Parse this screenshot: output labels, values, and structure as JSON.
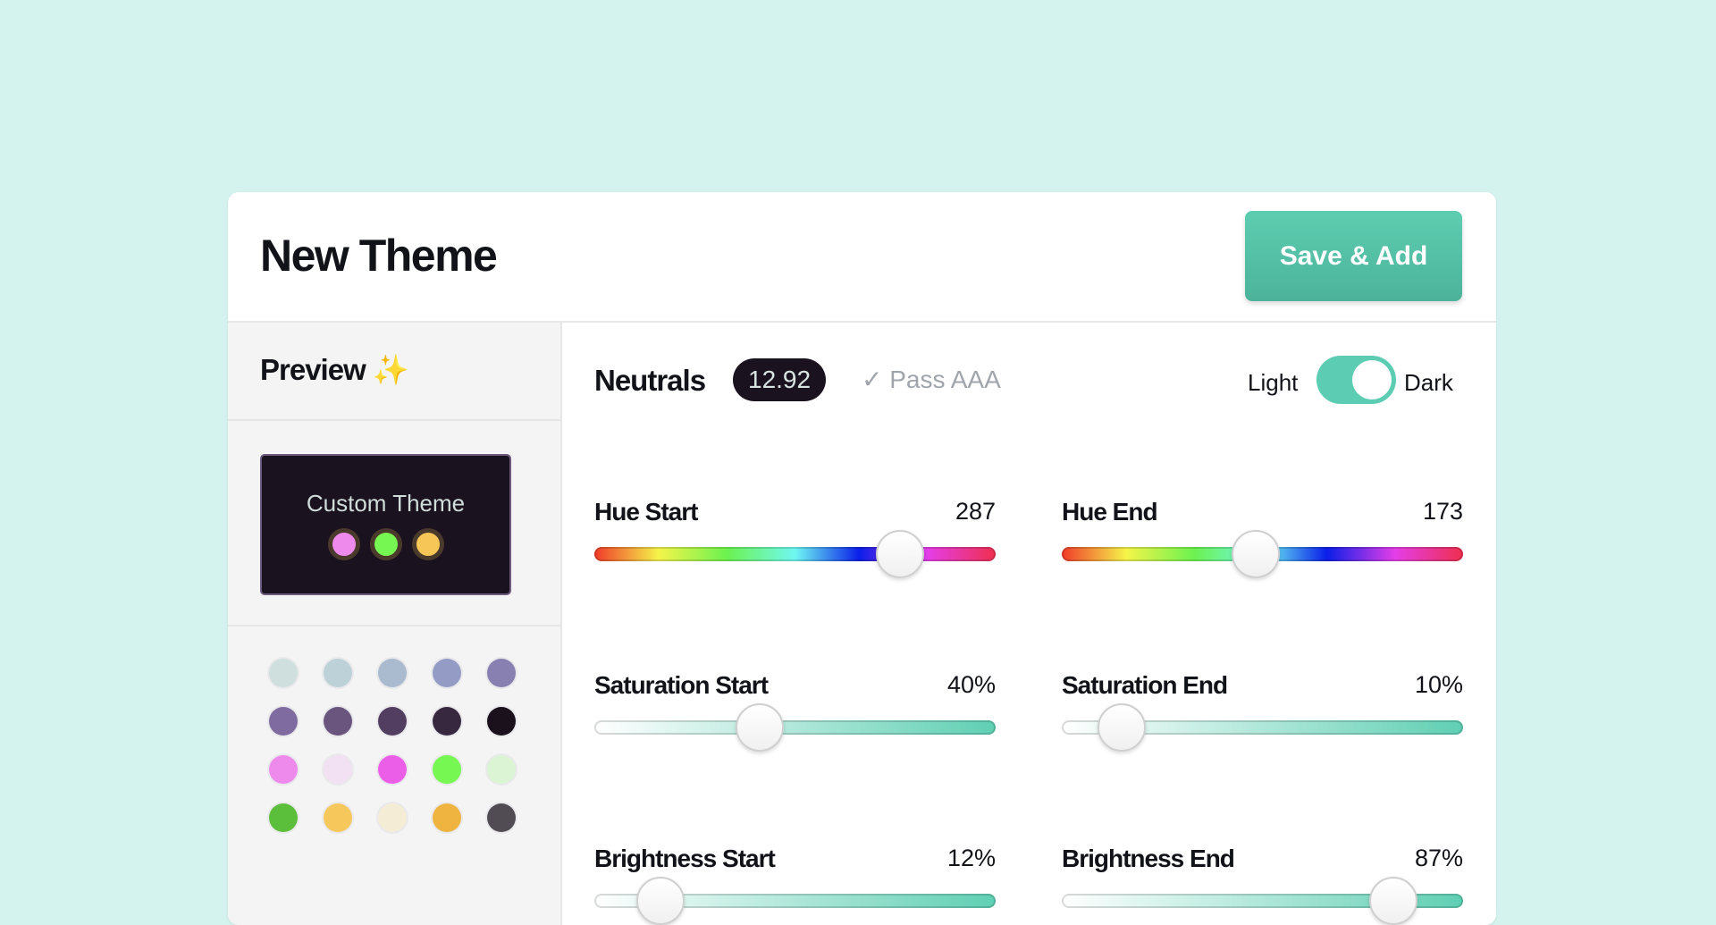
{
  "header": {
    "title": "New Theme",
    "save_label": "Save & Add"
  },
  "sidebar": {
    "preview_title": "Preview",
    "preview_icon": "sparkles-icon",
    "theme_card": {
      "name": "Custom Theme",
      "background": "#1b1220",
      "dots": [
        "#ef8aed",
        "#76f751",
        "#f6c656"
      ]
    },
    "swatches": [
      "#cfdfdd",
      "#bdd1d8",
      "#aabacf",
      "#949bc4",
      "#8980b2",
      "#7f6ba0",
      "#6a557f",
      "#523e60",
      "#372840",
      "#1a111d",
      "#ef8aed",
      "#f2e1f2",
      "#eb5ee8",
      "#76f751",
      "#daf4d4",
      "#5bbf3c",
      "#f6c75a",
      "#f5ecd6",
      "#efb33f",
      "#514b53"
    ]
  },
  "main": {
    "section_title": "Neutrals",
    "contrast_ratio": "12.92",
    "contrast_status": "✓ Pass AAA",
    "mode_toggle": {
      "left_label": "Light",
      "right_label": "Dark",
      "selected": "Dark"
    },
    "controls": [
      {
        "label": "Hue Start",
        "display": "287",
        "value": 287,
        "max": 360,
        "track": "hue"
      },
      {
        "label": "Hue End",
        "display": "173",
        "value": 173,
        "max": 360,
        "track": "hue"
      },
      {
        "label": "Saturation Start",
        "display": "40%",
        "value": 40,
        "max": 100,
        "track": "sat"
      },
      {
        "label": "Saturation End",
        "display": "10%",
        "value": 10,
        "max": 100,
        "track": "sat"
      },
      {
        "label": "Brightness Start",
        "display": "12%",
        "value": 12,
        "max": 100,
        "track": "sat"
      },
      {
        "label": "Brightness End",
        "display": "87%",
        "value": 87,
        "max": 100,
        "track": "sat"
      }
    ]
  },
  "colors": {
    "accent": "#5ccdb2",
    "background": "#d4f3ee"
  }
}
